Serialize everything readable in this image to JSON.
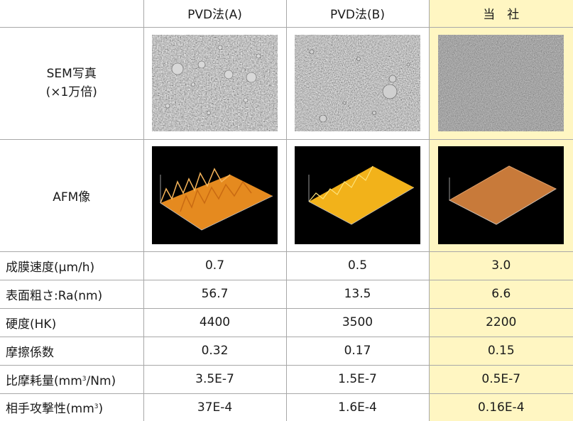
{
  "header": {
    "columns": [
      "PVD法(A)",
      "PVD法(B)",
      "当　社"
    ]
  },
  "image_rows": {
    "sem": {
      "label_line1": "SEM写真",
      "label_line2": "(×1万倍)"
    },
    "afm": {
      "label": "AFM像"
    }
  },
  "rows": [
    {
      "label": "成膜速度(μm/h)",
      "values": [
        "0.7",
        "0.5",
        "3.0"
      ]
    },
    {
      "label": "表面粗さ:Ra(nm)",
      "values": [
        "56.7",
        "13.5",
        "6.6"
      ]
    },
    {
      "label": "硬度(HK)",
      "values": [
        "4400",
        "3500",
        "2200"
      ]
    },
    {
      "label": "摩擦係数",
      "values": [
        "0.32",
        "0.17",
        "0.15"
      ]
    },
    {
      "label_prefix": "比摩耗量(mm",
      "label_sup": "3",
      "label_suffix": "/Nm)",
      "values": [
        "3.5E-7",
        "1.5E-7",
        "0.5E-7"
      ]
    },
    {
      "label_prefix": "相手攻撃性(mm",
      "label_sup": "3",
      "label_suffix": ")",
      "values": [
        "37E-4",
        "1.6E-4",
        "0.16E-4"
      ]
    }
  ],
  "colors": {
    "highlight": "#fff6c2",
    "grid": "#a8a8a8",
    "afm_orange": "#e58a1f",
    "afm_yellow": "#f2b21a",
    "afm_brown": "#c87a3a"
  }
}
